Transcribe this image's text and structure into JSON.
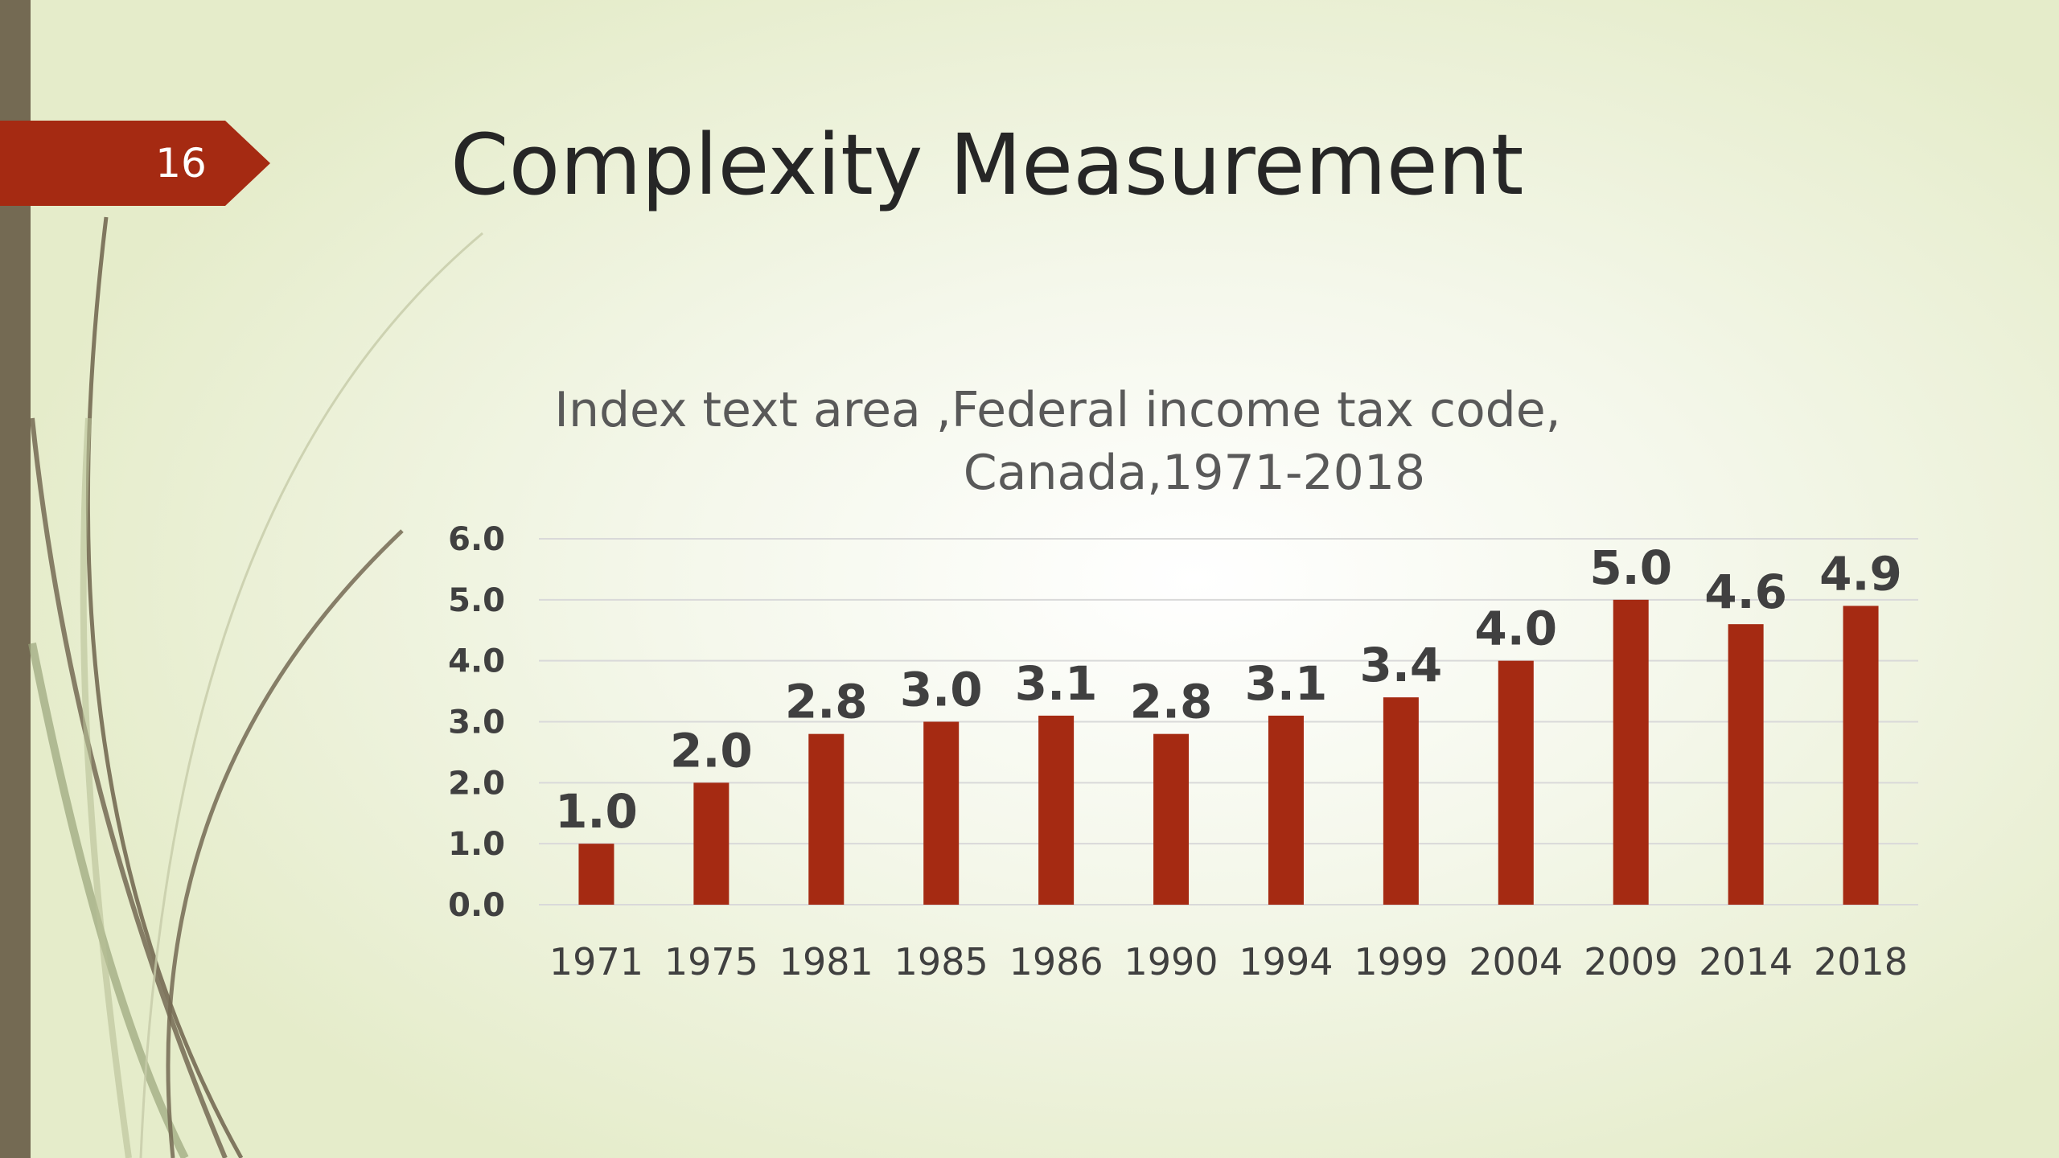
{
  "slide": {
    "number": "16",
    "title": "Complexity Measurement"
  },
  "colors": {
    "accent": "#a52a12",
    "left_band": "#746a53",
    "bar": "#a52a12",
    "background": "#e5ecca"
  },
  "chart_data": {
    "type": "bar",
    "title_lines": [
      "Index text area ,Federal income tax code,",
      "Canada,1971-2018"
    ],
    "categories": [
      "1971",
      "1975",
      "1981",
      "1985",
      "1986",
      "1990",
      "1994",
      "1999",
      "2004",
      "2009",
      "2014",
      "2018"
    ],
    "values": [
      1.0,
      2.0,
      2.8,
      3.0,
      3.1,
      2.8,
      3.1,
      3.4,
      4.0,
      5.0,
      4.6,
      4.9
    ],
    "data_labels": [
      "1.0",
      "2.0",
      "2.8",
      "3.0",
      "3.1",
      "2.8",
      "3.1",
      "3.4",
      "4.0",
      "5.0",
      "4.6",
      "4.9"
    ],
    "y_ticks": [
      "0.0",
      "1.0",
      "2.0",
      "3.0",
      "4.0",
      "5.0",
      "6.0"
    ],
    "ylim": [
      0,
      6
    ],
    "grid": true,
    "legend": "none"
  }
}
